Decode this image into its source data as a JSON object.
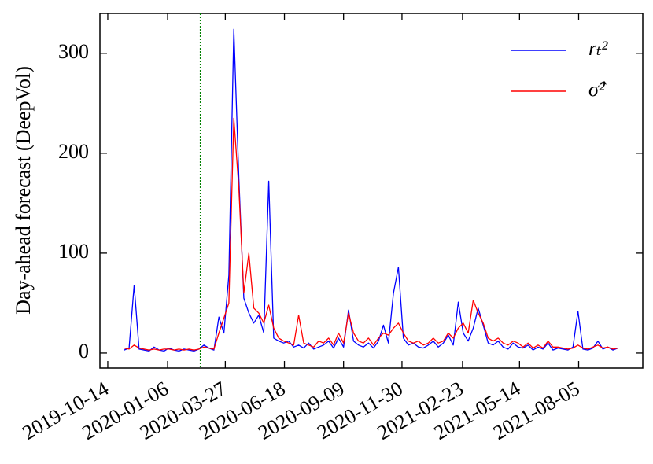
{
  "chart_data": {
    "type": "line",
    "y_label": "Day-ahead forecast (DeepVol)",
    "x": [
      "2019-11-06",
      "2019-11-13",
      "2019-11-20",
      "2019-11-27",
      "2019-12-04",
      "2019-12-11",
      "2019-12-18",
      "2019-12-25",
      "2020-01-01",
      "2020-01-08",
      "2020-01-15",
      "2020-01-22",
      "2020-01-29",
      "2020-02-05",
      "2020-02-12",
      "2020-02-19",
      "2020-02-26",
      "2020-03-04",
      "2020-03-11",
      "2020-03-18",
      "2020-03-25",
      "2020-04-01",
      "2020-04-08",
      "2020-04-15",
      "2020-04-22",
      "2020-04-29",
      "2020-05-06",
      "2020-05-13",
      "2020-05-20",
      "2020-05-27",
      "2020-06-03",
      "2020-06-10",
      "2020-06-17",
      "2020-06-24",
      "2020-07-01",
      "2020-07-08",
      "2020-07-15",
      "2020-07-22",
      "2020-07-29",
      "2020-08-05",
      "2020-08-12",
      "2020-08-19",
      "2020-08-26",
      "2020-09-02",
      "2020-09-09",
      "2020-09-16",
      "2020-09-23",
      "2020-09-30",
      "2020-10-07",
      "2020-10-14",
      "2020-10-21",
      "2020-10-28",
      "2020-11-04",
      "2020-11-11",
      "2020-11-18",
      "2020-11-25",
      "2020-12-02",
      "2020-12-09",
      "2020-12-16",
      "2020-12-23",
      "2020-12-30",
      "2021-01-06",
      "2021-01-13",
      "2021-01-20",
      "2021-01-27",
      "2021-02-03",
      "2021-02-10",
      "2021-02-17",
      "2021-02-24",
      "2021-03-03",
      "2021-03-10",
      "2021-03-17",
      "2021-03-24",
      "2021-03-31",
      "2021-04-07",
      "2021-04-14",
      "2021-04-21",
      "2021-04-28",
      "2021-05-05",
      "2021-05-12",
      "2021-05-19",
      "2021-05-26",
      "2021-06-02",
      "2021-06-09",
      "2021-06-16",
      "2021-06-23",
      "2021-06-30",
      "2021-07-07",
      "2021-07-14",
      "2021-07-21",
      "2021-07-28",
      "2021-08-04",
      "2021-08-11",
      "2021-08-18",
      "2021-08-25",
      "2021-09-01",
      "2021-09-08",
      "2021-09-15",
      "2021-09-22",
      "2021-09-29"
    ],
    "series": [
      {
        "name": "rₜ²",
        "color": "#0000ff",
        "values": [
          3,
          5,
          68,
          4,
          3,
          2,
          6,
          3,
          2,
          5,
          3,
          2,
          4,
          3,
          2,
          4,
          8,
          5,
          3,
          36,
          20,
          78,
          324,
          175,
          55,
          40,
          30,
          38,
          20,
          172,
          15,
          12,
          10,
          12,
          6,
          8,
          5,
          10,
          4,
          6,
          8,
          12,
          5,
          15,
          6,
          43,
          12,
          8,
          6,
          10,
          5,
          12,
          28,
          10,
          60,
          86,
          15,
          8,
          10,
          6,
          5,
          8,
          12,
          6,
          10,
          18,
          8,
          51,
          20,
          12,
          25,
          45,
          28,
          10,
          8,
          12,
          6,
          4,
          10,
          6,
          5,
          8,
          3,
          6,
          4,
          10,
          3,
          5,
          4,
          3,
          6,
          42,
          4,
          3,
          5,
          12,
          4,
          6,
          3,
          5
        ]
      },
      {
        "name": "σ̂²",
        "color": "#ff0000",
        "values": [
          5,
          4,
          8,
          5,
          4,
          3,
          4,
          3,
          4,
          4,
          3,
          4,
          3,
          4,
          3,
          4,
          6,
          5,
          4,
          20,
          35,
          50,
          235,
          165,
          60,
          100,
          45,
          40,
          30,
          48,
          25,
          15,
          12,
          10,
          8,
          38,
          10,
          8,
          6,
          12,
          10,
          15,
          8,
          20,
          10,
          40,
          20,
          12,
          10,
          15,
          8,
          15,
          20,
          18,
          25,
          30,
          20,
          12,
          10,
          12,
          8,
          10,
          15,
          10,
          12,
          20,
          15,
          25,
          30,
          20,
          53,
          40,
          30,
          15,
          12,
          15,
          10,
          8,
          12,
          10,
          6,
          10,
          5,
          8,
          5,
          12,
          6,
          6,
          5,
          4,
          5,
          8,
          5,
          4,
          6,
          8,
          5,
          6,
          4,
          5
        ]
      }
    ],
    "xlim": [
      "2019-10-03",
      "2021-11-03"
    ],
    "xticks": [
      "2019-10-14",
      "2020-01-06",
      "2020-03-27",
      "2020-06-18",
      "2020-09-09",
      "2020-11-30",
      "2021-02-23",
      "2021-05-14",
      "2021-08-05"
    ],
    "ylim": [
      -15,
      340
    ],
    "yticks": [
      0,
      100,
      200,
      300
    ],
    "vline": "2020-02-21",
    "vline_color": "#008000",
    "legend": "upper right"
  }
}
